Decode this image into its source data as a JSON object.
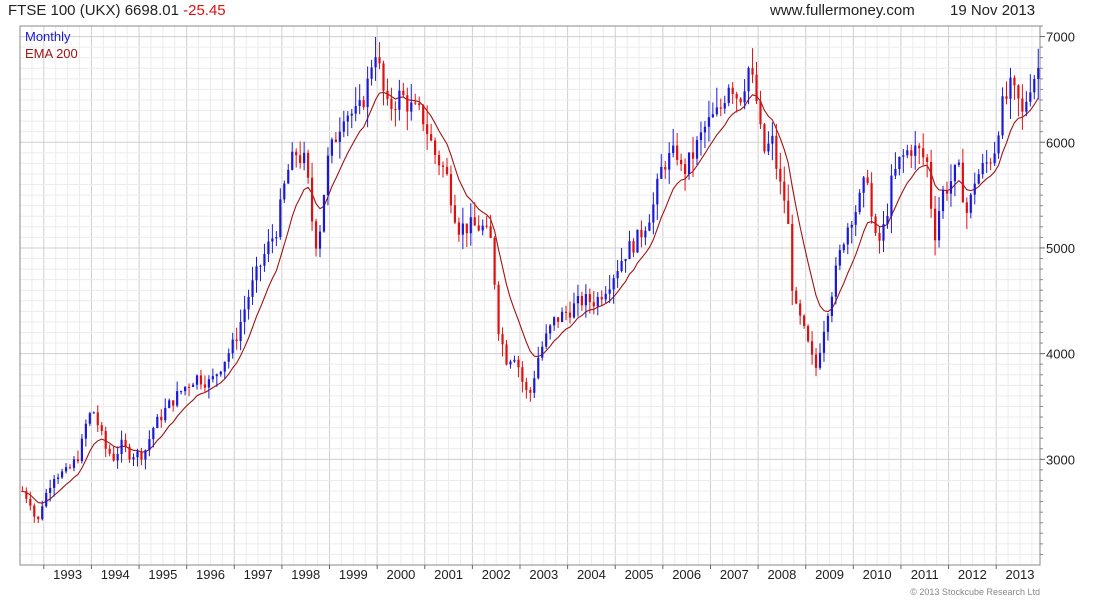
{
  "header": {
    "instrument": "FTSE 100 (UKX)",
    "last": "6698.01",
    "change": "-25.45",
    "site": "www.fullermoney.com",
    "date": "19 Nov 2013"
  },
  "legend": {
    "period": "Monthly",
    "indicator": "EMA 200"
  },
  "copyright": "© 2013 Stockcube Research Ltd",
  "colors": {
    "up": "#1a1ad6",
    "down": "#dd1111",
    "ema": "#a01414",
    "grid": "#dcdcdc",
    "frame": "#888888"
  },
  "chart_data": {
    "type": "ohlc",
    "series": [
      {
        "name": "Monthly",
        "kind": "ohlc"
      },
      {
        "name": "EMA 200",
        "kind": "line"
      }
    ],
    "x_tick_labels": [
      "1993",
      "1994",
      "1995",
      "1996",
      "1997",
      "1998",
      "1999",
      "2000",
      "2001",
      "2002",
      "2003",
      "2004",
      "2005",
      "2006",
      "2007",
      "2008",
      "2009",
      "2010",
      "2011",
      "2012",
      "2013"
    ],
    "xlim": [
      1992.5,
      2013.92
    ],
    "y_tick_labels": [
      "3000",
      "4000",
      "5000",
      "6000",
      "7000"
    ],
    "y_ticks": [
      3000,
      4000,
      5000,
      6000,
      7000
    ],
    "ylim": [
      2000,
      7100
    ],
    "y_axis_side": "right",
    "grid": true,
    "anchors": [
      [
        1992.55,
        2700
      ],
      [
        1992.75,
        2580
      ],
      [
        1992.85,
        2350
      ],
      [
        1992.95,
        2560
      ],
      [
        1993.2,
        2850
      ],
      [
        1993.5,
        2880
      ],
      [
        1993.75,
        3050
      ],
      [
        1993.92,
        3400
      ],
      [
        1994.05,
        3450
      ],
      [
        1994.3,
        3100
      ],
      [
        1994.5,
        3000
      ],
      [
        1994.6,
        3150
      ],
      [
        1994.8,
        3050
      ],
      [
        1994.95,
        3050
      ],
      [
        1995.1,
        3050
      ],
      [
        1995.3,
        3300
      ],
      [
        1995.6,
        3500
      ],
      [
        1995.95,
        3680
      ],
      [
        1996.2,
        3780
      ],
      [
        1996.5,
        3720
      ],
      [
        1996.8,
        3950
      ],
      [
        1997.0,
        4100
      ],
      [
        1997.3,
        4550
      ],
      [
        1997.6,
        4900
      ],
      [
        1997.9,
        5200
      ],
      [
        1998.1,
        5700
      ],
      [
        1998.3,
        5900
      ],
      [
        1998.5,
        5800
      ],
      [
        1998.65,
        5200
      ],
      [
        1998.75,
        5000
      ],
      [
        1998.95,
        5800
      ],
      [
        1999.3,
        6300
      ],
      [
        1999.6,
        6250
      ],
      [
        1999.8,
        6550
      ],
      [
        1999.95,
        6930
      ],
      [
        2000.2,
        6300
      ],
      [
        2000.5,
        6450
      ],
      [
        2000.75,
        6300
      ],
      [
        2000.95,
        6250
      ],
      [
        2001.2,
        5900
      ],
      [
        2001.45,
        5700
      ],
      [
        2001.7,
        5200
      ],
      [
        2001.9,
        5200
      ],
      [
        2002.2,
        5200
      ],
      [
        2002.4,
        5050
      ],
      [
        2002.55,
        4250
      ],
      [
        2002.7,
        3950
      ],
      [
        2002.9,
        4000
      ],
      [
        2003.1,
        3650
      ],
      [
        2003.2,
        3600
      ],
      [
        2003.4,
        4000
      ],
      [
        2003.7,
        4300
      ],
      [
        2004.0,
        4400
      ],
      [
        2004.3,
        4500
      ],
      [
        2004.6,
        4500
      ],
      [
        2004.9,
        4700
      ],
      [
        2005.2,
        4950
      ],
      [
        2005.5,
        5100
      ],
      [
        2005.8,
        5400
      ],
      [
        2006.0,
        5800
      ],
      [
        2006.3,
        5900
      ],
      [
        2006.4,
        5700
      ],
      [
        2006.6,
        5850
      ],
      [
        2006.9,
        6150
      ],
      [
        2007.2,
        6300
      ],
      [
        2007.4,
        6600
      ],
      [
        2007.6,
        6400
      ],
      [
        2007.8,
        6700
      ],
      [
        2007.95,
        6450
      ],
      [
        2008.1,
        5900
      ],
      [
        2008.3,
        6000
      ],
      [
        2008.45,
        5600
      ],
      [
        2008.6,
        5400
      ],
      [
        2008.75,
        4450
      ],
      [
        2008.9,
        4300
      ],
      [
        2009.1,
        4000
      ],
      [
        2009.2,
        3830
      ],
      [
        2009.4,
        4300
      ],
      [
        2009.6,
        4700
      ],
      [
        2009.8,
        5100
      ],
      [
        2009.95,
        5300
      ],
      [
        2010.1,
        5400
      ],
      [
        2010.3,
        5700
      ],
      [
        2010.4,
        5200
      ],
      [
        2010.5,
        5000
      ],
      [
        2010.65,
        5200
      ],
      [
        2010.8,
        5600
      ],
      [
        2010.95,
        5800
      ],
      [
        2011.2,
        5950
      ],
      [
        2011.4,
        5900
      ],
      [
        2011.55,
        5800
      ],
      [
        2011.7,
        5100
      ],
      [
        2011.85,
        5500
      ],
      [
        2012.0,
        5600
      ],
      [
        2012.2,
        5750
      ],
      [
        2012.4,
        5300
      ],
      [
        2012.55,
        5650
      ],
      [
        2012.8,
        5800
      ],
      [
        2012.95,
        5900
      ],
      [
        2013.1,
        6300
      ],
      [
        2013.3,
        6500
      ],
      [
        2013.45,
        6400
      ],
      [
        2013.55,
        6250
      ],
      [
        2013.7,
        6550
      ],
      [
        2013.88,
        6700
      ]
    ]
  }
}
